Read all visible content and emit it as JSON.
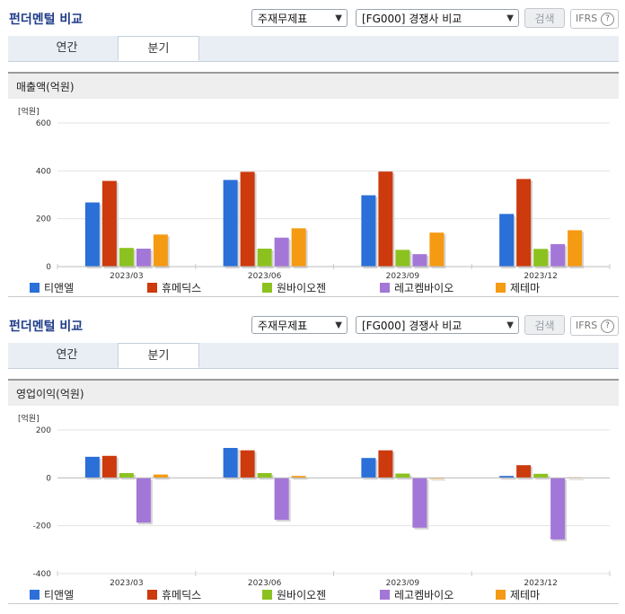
{
  "panels": [
    {
      "title": "펀더멘털 비교",
      "select_statement": "주재무제표",
      "select_compare": "[FG000] 경쟁사 비교",
      "search_label": "검색",
      "ifrs_label": "IFRS",
      "ifrs_help": "?",
      "tabs": [
        "연간",
        "분기"
      ],
      "active_tab": "분기",
      "metric_title": "매출액(억원)"
    },
    {
      "title": "펀더멘털 비교",
      "select_statement": "주재무제표",
      "select_compare": "[FG000] 경쟁사 비교",
      "search_label": "검색",
      "ifrs_label": "IFRS",
      "ifrs_help": "?",
      "tabs": [
        "연간",
        "분기"
      ],
      "active_tab": "분기",
      "metric_title": "영업이익(억원)"
    }
  ],
  "colors": {
    "series": [
      "#2b6fd8",
      "#cc3a0e",
      "#8cc21f",
      "#a377d7",
      "#f59a13"
    ],
    "title_blue": "#1f3c88",
    "tabbar": "#e9eef5",
    "metric_header": "#eeeeee"
  },
  "chart_data": [
    {
      "type": "bar",
      "title": "매출액(억원)",
      "unit_label": "[억원]",
      "categories": [
        "2023/03",
        "2023/06",
        "2023/09",
        "2023/12"
      ],
      "ylim": [
        0,
        600
      ],
      "yticks": [
        0,
        200,
        400,
        600
      ],
      "grid": true,
      "legend_position": "bottom",
      "series": [
        {
          "name": "티앤엘",
          "values": [
            268,
            362,
            298,
            220
          ]
        },
        {
          "name": "휴메딕스",
          "values": [
            358,
            396,
            397,
            366
          ]
        },
        {
          "name": "원바이오젠",
          "values": [
            78,
            75,
            70,
            74
          ]
        },
        {
          "name": "레고켐바이오",
          "values": [
            75,
            121,
            52,
            94
          ]
        },
        {
          "name": "제테마",
          "values": [
            134,
            160,
            142,
            152
          ]
        }
      ]
    },
    {
      "type": "bar",
      "title": "영업이익(억원)",
      "unit_label": "[억원]",
      "categories": [
        "2023/03",
        "2023/06",
        "2023/09",
        "2023/12"
      ],
      "ylim": [
        -400,
        200
      ],
      "yticks": [
        -400,
        -200,
        0,
        200
      ],
      "grid": true,
      "legend_position": "bottom",
      "series": [
        {
          "name": "티앤엘",
          "values": [
            88,
            125,
            83,
            8
          ]
        },
        {
          "name": "휴메딕스",
          "values": [
            92,
            115,
            115,
            53
          ]
        },
        {
          "name": "원바이오젠",
          "values": [
            20,
            20,
            18,
            17
          ]
        },
        {
          "name": "레고켐바이오",
          "values": [
            -187,
            -175,
            -208,
            -257
          ]
        },
        {
          "name": "제테마",
          "values": [
            14,
            8,
            -4,
            2
          ]
        }
      ]
    }
  ]
}
